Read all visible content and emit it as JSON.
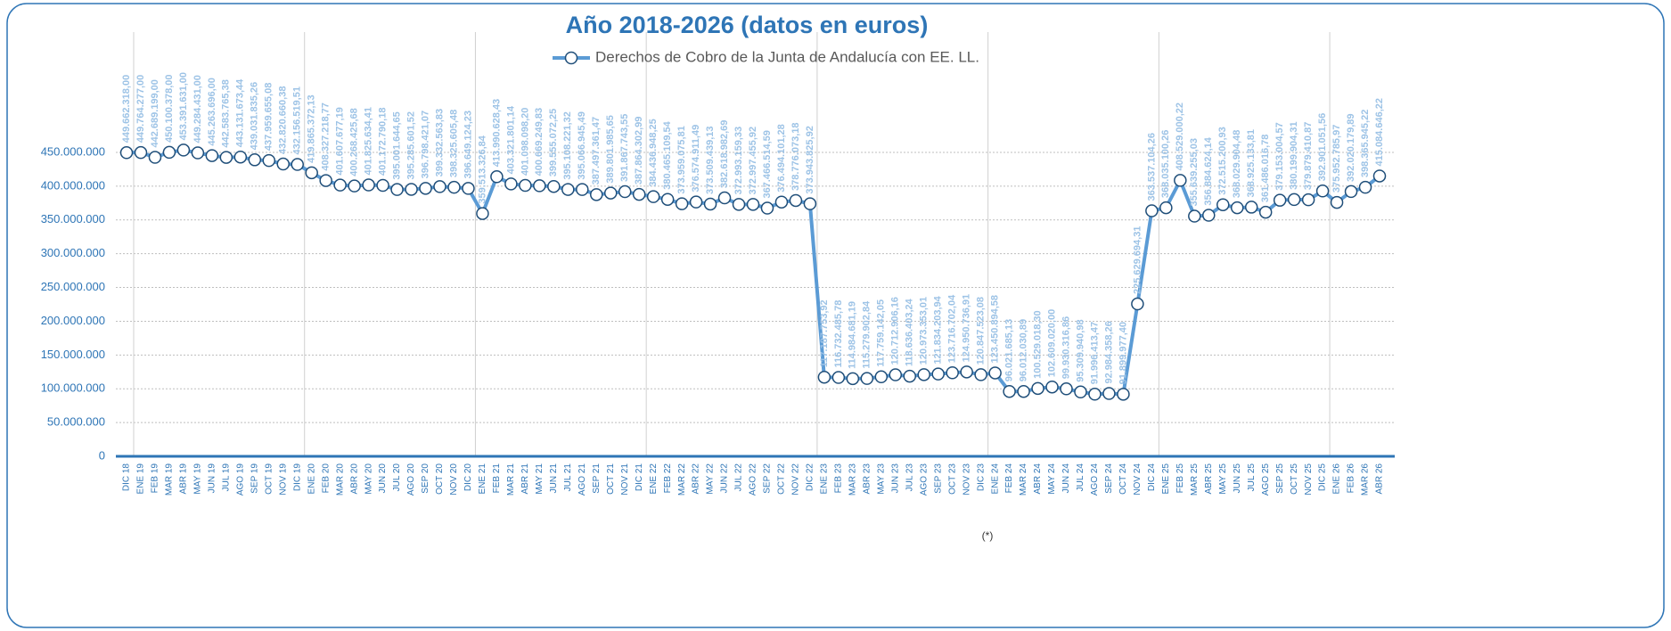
{
  "chart_data": {
    "type": "line",
    "title": "Año 2018-2026 (datos en euros)",
    "footnote": "(*)",
    "legend": "top",
    "grid": true,
    "categories": [
      "DIC 18",
      "ENE 19",
      "FEB 19",
      "MAR 19",
      "ABR 19",
      "MAY 19",
      "JUN 19",
      "JUL 19",
      "AGO 19",
      "SEP 19",
      "OCT 19",
      "NOV 19",
      "DIC 19",
      "ENE 20",
      "FEB 20",
      "MAR 20",
      "ABR 20",
      "MAY 20",
      "JUN 20",
      "JUL 20",
      "AGO 20",
      "SEP 20",
      "OCT 20",
      "NOV 20",
      "DIC 20",
      "ENE 21",
      "FEB 21",
      "MAR 21",
      "ABR 21",
      "MAY 21",
      "JUN 21",
      "JUL 21",
      "AGO 21",
      "SEP 21",
      "OCT 21",
      "NOV 21",
      "DIC 21",
      "ENE 22",
      "FEB 22",
      "MAR 22",
      "ABR 22",
      "MAY 22",
      "JUN 22",
      "JUL 22",
      "AGO 22",
      "SEP 22",
      "OCT 22",
      "NOV 22",
      "DIC 22",
      "ENE 23",
      "FEB 23",
      "MAR 23",
      "ABR 23",
      "MAY 23",
      "JUN 23",
      "JUL 23",
      "AGO 23",
      "SEP 23",
      "OCT 23",
      "NOV 23",
      "DIC 23",
      "ENE 24",
      "FEB 24",
      "MAR 24",
      "ABR 24",
      "MAY 24",
      "JUN 24",
      "JUL 24",
      "AGO 24",
      "SEP 24",
      "OCT 24",
      "NOV 24",
      "DIC 24",
      "ENE 25",
      "FEB 25",
      "MAR 25",
      "ABR 25",
      "MAY 25",
      "JUN 25",
      "JUL 25",
      "AGO 25",
      "SEP 25",
      "OCT 25",
      "NOV 25",
      "DIC 25",
      "ENE 26",
      "FEB 26",
      "MAR 26",
      "ABR 26"
    ],
    "series": [
      {
        "name": "Derechos de Cobro de la Junta de Andalucía con EE. LL.",
        "color": "#5b9bd5",
        "values": [
          449662318,
          449764277,
          442689199,
          450100378,
          453391631,
          449284431,
          445263696,
          442583765.38,
          443131673.44,
          439031835.26,
          437959655.08,
          432820660.38,
          432156519.51,
          419865372.13,
          408327218.77,
          401607677.19,
          400268425.68,
          401825634.41,
          401172790.18,
          395001644.65,
          395285601.52,
          396798421.07,
          399332563.83,
          398325605.48,
          396649124.23,
          359513326.84,
          413990628.43,
          403321801.14,
          401098098.2,
          400669249.83,
          399555072.25,
          395108221.32,
          395066945.49,
          387497361.47,
          389801985.65,
          391867743.55,
          387864302.99,
          384436948.25,
          380465109.54,
          373959075.81,
          376574911.49,
          373509439.13,
          382618982.69,
          372993159.33,
          372997455.92,
          367466514.59,
          376494101.28,
          378776073.18,
          373943825.92,
          117187753.92,
          116732485.78,
          114984681.19,
          115279902.84,
          117759142.05,
          120712906.16,
          118636403.24,
          120973353.01,
          121834203.94,
          123716702.04,
          124950736.91,
          120847523.08,
          123450894.58,
          96021685.13,
          96012030.89,
          100529018.3,
          102609020.0,
          99930316.86,
          95309940.98,
          91996413.47,
          92984358.26,
          91899977.4,
          225629694.31,
          363537104.26,
          368035100.26,
          408529000.22,
          355639255.03,
          356884624.14,
          372515200.93,
          368029904.48,
          368925133.81,
          361486016.78,
          379153004.57,
          380199904.31,
          379879410.87,
          392901051.56,
          375952785.97,
          392020179.89,
          398365945.22,
          415084646.22
        ],
        "value_labels": [
          "449.662.318,00",
          "449.764.277,00",
          "442.689.199,00",
          "450.100.378,00",
          "453.391.631,00",
          "449.284.431,00",
          "445.263.696,00",
          "442.583.765,38",
          "443.131.673,44",
          "439.031.835,26",
          "437.959.655,08",
          "432.820.660,38",
          "432.156.519,51",
          "419.865.372,13",
          "408.327.218,77",
          "401.607.677,19",
          "400.268.425,68",
          "401.825.634,41",
          "401.172.790,18",
          "395.001.644,65",
          "395.285.601,52",
          "396.798.421,07",
          "399.332.563,83",
          "398.325.605,48",
          "396.649.124,23",
          "359.513.326,84",
          "413.990.628,43",
          "403.321.801,14",
          "401.098.098,20",
          "400.669.249,83",
          "399.555.072,25",
          "395.108.221,32",
          "395.066.945,49",
          "387.497.361,47",
          "389.801.985,65",
          "391.867.743,55",
          "387.864.302,99",
          "384.436.948,25",
          "380.465.109,54",
          "373.959.075,81",
          "376.574.911,49",
          "373.509.439,13",
          "382.618.982,69",
          "372.993.159,33",
          "372.997.455,92",
          "367.466.514,59",
          "376.494.101,28",
          "378.776.073,18",
          "373.943.825,92",
          "117.187.753,92",
          "116.732.485,78",
          "114.984.681,19",
          "115.279.902,84",
          "117.759.142,05",
          "120.712.906,16",
          "118.636.403,24",
          "120.973.353,01",
          "121.834.203,94",
          "123.716.702,04",
          "124.950.736,91",
          "120.847.523,08",
          "123.450.894,58",
          "96.021.685,13",
          "96.012.030,89",
          "100.529.018,30",
          "102.609.020,00",
          "99.930.316,86",
          "95.309.940,98",
          "91.996.413,47",
          "92.984.358,26",
          "91.899.977,40",
          "225.629.694,31",
          "363.537.104,26",
          "368.035.100,26",
          "408.529.000,22",
          "355.639.255,03",
          "356.884.624,14",
          "372.515.200,93",
          "368.029.904,48",
          "368.925.133,81",
          "361.486.016,78",
          "379.153.004,57",
          "380.199.904,31",
          "379.879.410,87",
          "392.901.051,56",
          "375.952.785,97",
          "392.020.179,89",
          "398.365.945,22",
          "415.084.646,22"
        ]
      }
    ],
    "ylim": [
      0,
      450000000
    ],
    "yticks": [
      0,
      {
        "value": 50000000,
        "label": "50.000.000"
      },
      {
        "value": 100000000,
        "label": "100.000.000"
      },
      {
        "value": 150000000,
        "label": "150.000.000"
      },
      {
        "value": 200000000,
        "label": "200.000.000"
      },
      {
        "value": 250000000,
        "label": "250.000.000"
      },
      {
        "value": 300000000,
        "label": "300.000.000"
      },
      {
        "value": 350000000,
        "label": "350.000.000"
      },
      {
        "value": 400000000,
        "label": "400.000.000"
      },
      {
        "value": 450000000,
        "label": "450.000.000"
      }
    ]
  }
}
